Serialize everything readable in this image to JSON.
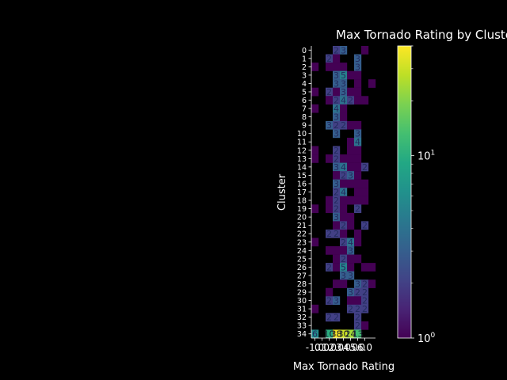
{
  "chart_data": {
    "type": "heatmap",
    "title": "Max Tornado Rating by Cluster with OPTICS Clusteri",
    "xlabel": "Max Tornado Rating",
    "ylabel": "Cluster",
    "x_categories": [
      "-1",
      "0",
      "1",
      "2",
      "3",
      "4",
      "5",
      "6"
    ],
    "x_tick_labels": [
      "-1.0",
      "0.0",
      "1.0",
      "2.0",
      "3.0",
      "4.0",
      "5.0",
      "6.0"
    ],
    "y_categories": [
      "0",
      "1",
      "2",
      "3",
      "4",
      "5",
      "6",
      "7",
      "8",
      "9",
      "10",
      "11",
      "12",
      "13",
      "14",
      "15",
      "16",
      "17",
      "18",
      "19",
      "20",
      "21",
      "22",
      "23",
      "24",
      "25",
      "26",
      "27",
      "28",
      "29",
      "30",
      "31",
      "32",
      "33",
      "34"
    ],
    "colormap": "viridis",
    "color_scale": "log",
    "colorbar_range": [
      1,
      40
    ],
    "colorbar_ticks": [
      {
        "value": 1,
        "base": "10",
        "exp": "0"
      },
      {
        "value": 10,
        "base": "10",
        "exp": "1"
      }
    ],
    "background_color": "#000000",
    "text_color": "#ffffff",
    "cell_label_color": "#232b5e",
    "dark_label_color": "#1a1a2e",
    "cells": [
      [
        0,
        3,
        2
      ],
      [
        0,
        4,
        3
      ],
      [
        0,
        7,
        1
      ],
      [
        1,
        2,
        2
      ],
      [
        1,
        3,
        1
      ],
      [
        1,
        6,
        3
      ],
      [
        2,
        0,
        1
      ],
      [
        2,
        2,
        1
      ],
      [
        2,
        3,
        1
      ],
      [
        2,
        4,
        1
      ],
      [
        2,
        6,
        3
      ],
      [
        3,
        3,
        3
      ],
      [
        3,
        4,
        5
      ],
      [
        3,
        5,
        1
      ],
      [
        3,
        6,
        1
      ],
      [
        4,
        3,
        3
      ],
      [
        4,
        4,
        3
      ],
      [
        4,
        6,
        1
      ],
      [
        4,
        8,
        1
      ],
      [
        5,
        0,
        1
      ],
      [
        5,
        2,
        2
      ],
      [
        5,
        3,
        1
      ],
      [
        5,
        4,
        3
      ],
      [
        5,
        5,
        1
      ],
      [
        5,
        6,
        1
      ],
      [
        6,
        2,
        1
      ],
      [
        6,
        3,
        2
      ],
      [
        6,
        4,
        4
      ],
      [
        6,
        5,
        2
      ],
      [
        6,
        6,
        1
      ],
      [
        6,
        7,
        1
      ],
      [
        7,
        0,
        1
      ],
      [
        7,
        3,
        4
      ],
      [
        7,
        4,
        1
      ],
      [
        8,
        3,
        3
      ],
      [
        8,
        4,
        1
      ],
      [
        9,
        2,
        3
      ],
      [
        9,
        3,
        2
      ],
      [
        9,
        4,
        2
      ],
      [
        9,
        5,
        1
      ],
      [
        9,
        6,
        1
      ],
      [
        10,
        3,
        3
      ],
      [
        10,
        6,
        3
      ],
      [
        11,
        5,
        1
      ],
      [
        11,
        6,
        4
      ],
      [
        12,
        0,
        1
      ],
      [
        12,
        3,
        2
      ],
      [
        12,
        5,
        1
      ],
      [
        12,
        6,
        1
      ],
      [
        13,
        0,
        1
      ],
      [
        13,
        2,
        1
      ],
      [
        13,
        3,
        2
      ],
      [
        13,
        4,
        1
      ],
      [
        13,
        5,
        1
      ],
      [
        13,
        6,
        1
      ],
      [
        14,
        3,
        3
      ],
      [
        14,
        4,
        4
      ],
      [
        14,
        5,
        1
      ],
      [
        14,
        6,
        1
      ],
      [
        14,
        7,
        2
      ],
      [
        15,
        3,
        1
      ],
      [
        15,
        4,
        2
      ],
      [
        15,
        5,
        3
      ],
      [
        15,
        6,
        1
      ],
      [
        16,
        3,
        3
      ],
      [
        16,
        4,
        1
      ],
      [
        16,
        5,
        1
      ],
      [
        16,
        6,
        1
      ],
      [
        16,
        7,
        1
      ],
      [
        17,
        3,
        2
      ],
      [
        17,
        4,
        4
      ],
      [
        17,
        6,
        1
      ],
      [
        17,
        7,
        1
      ],
      [
        18,
        2,
        1
      ],
      [
        18,
        3,
        2
      ],
      [
        18,
        4,
        1
      ],
      [
        18,
        5,
        1
      ],
      [
        18,
        6,
        1
      ],
      [
        18,
        7,
        1
      ],
      [
        19,
        0,
        1
      ],
      [
        19,
        2,
        1
      ],
      [
        19,
        3,
        2
      ],
      [
        19,
        4,
        1
      ],
      [
        19,
        6,
        2
      ],
      [
        20,
        3,
        3
      ],
      [
        20,
        4,
        1
      ],
      [
        20,
        5,
        1
      ],
      [
        21,
        3,
        1
      ],
      [
        21,
        4,
        2
      ],
      [
        21,
        5,
        1
      ],
      [
        21,
        7,
        2
      ],
      [
        22,
        2,
        2
      ],
      [
        22,
        3,
        2
      ],
      [
        22,
        4,
        1
      ],
      [
        22,
        6,
        1
      ],
      [
        23,
        0,
        1
      ],
      [
        23,
        4,
        2
      ],
      [
        23,
        5,
        4
      ],
      [
        23,
        6,
        1
      ],
      [
        24,
        2,
        1
      ],
      [
        24,
        3,
        1
      ],
      [
        24,
        4,
        1
      ],
      [
        24,
        5,
        3
      ],
      [
        25,
        3,
        1
      ],
      [
        25,
        4,
        2
      ],
      [
        25,
        5,
        1
      ],
      [
        25,
        6,
        1
      ],
      [
        26,
        2,
        2
      ],
      [
        26,
        3,
        1
      ],
      [
        26,
        4,
        5
      ],
      [
        26,
        5,
        1
      ],
      [
        26,
        7,
        1
      ],
      [
        26,
        8,
        1
      ],
      [
        27,
        4,
        3
      ],
      [
        27,
        5,
        3
      ],
      [
        28,
        3,
        1
      ],
      [
        28,
        4,
        1
      ],
      [
        28,
        6,
        3
      ],
      [
        28,
        7,
        2
      ],
      [
        28,
        8,
        1
      ],
      [
        29,
        2,
        1
      ],
      [
        29,
        5,
        3
      ],
      [
        29,
        6,
        2
      ],
      [
        29,
        7,
        2
      ],
      [
        30,
        2,
        2
      ],
      [
        30,
        3,
        3
      ],
      [
        30,
        5,
        1
      ],
      [
        30,
        6,
        1
      ],
      [
        30,
        7,
        2
      ],
      [
        31,
        0,
        1
      ],
      [
        31,
        5,
        2
      ],
      [
        31,
        6,
        2
      ],
      [
        31,
        7,
        2
      ],
      [
        32,
        2,
        2
      ],
      [
        32,
        3,
        2
      ],
      [
        32,
        6,
        2
      ],
      [
        33,
        6,
        2
      ],
      [
        33,
        7,
        1
      ],
      [
        34,
        0,
        6
      ],
      [
        34,
        2,
        10
      ],
      [
        34,
        3,
        38
      ],
      [
        34,
        4,
        30
      ],
      [
        34,
        5,
        24
      ],
      [
        34,
        6,
        13
      ]
    ],
    "grid": false,
    "legend": "colorbar-right"
  }
}
